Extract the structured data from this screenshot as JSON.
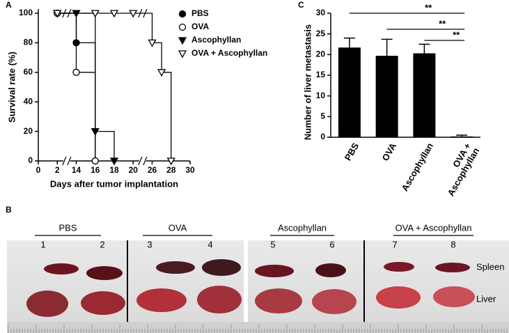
{
  "panel_labels": [
    "A",
    "B",
    "C"
  ],
  "chart_data": [
    {
      "type": "step",
      "xlabel": "Days after tumor implantation",
      "ylabel": "Survival rate (%)",
      "xlim": [
        0,
        30
      ],
      "xticks": [
        0,
        2,
        14,
        16,
        18,
        20,
        26,
        28,
        30
      ],
      "ylim": [
        0,
        100
      ],
      "yticks": [
        0,
        20,
        40,
        60,
        80,
        100
      ],
      "legend": "upper right",
      "series": [
        {
          "name": "PBS",
          "color": "#000000",
          "marker": "circle",
          "filled": true,
          "x": [
            2,
            14,
            16
          ],
          "values": [
            100,
            80,
            0
          ]
        },
        {
          "name": "OVA",
          "color": "#000000",
          "marker": "circle",
          "filled": false,
          "x": [
            2,
            14,
            16
          ],
          "values": [
            100,
            60,
            0
          ]
        },
        {
          "name": "Ascophyllan",
          "color": "#000000",
          "marker": "triangle-down",
          "filled": true,
          "x": [
            2,
            14,
            16,
            18
          ],
          "values": [
            100,
            100,
            20,
            0
          ]
        },
        {
          "name": "OVA + Ascophyllan",
          "color": "#000000",
          "marker": "triangle-down",
          "filled": false,
          "x": [
            2,
            16,
            18,
            20,
            26,
            27,
            28
          ],
          "values": [
            100,
            100,
            100,
            100,
            80,
            60,
            0
          ]
        }
      ]
    },
    {
      "type": "bar",
      "ylabel": "Number of liver metastasis",
      "categories": [
        "PBS",
        "OVA",
        "Ascophyllan",
        "OVA +\nAscophyllan"
      ],
      "values": [
        21.7,
        19.7,
        20.3,
        0.2
      ],
      "errors": [
        2.3,
        4.0,
        2.2,
        0.3
      ],
      "color": "#000000",
      "ylim": [
        0,
        30
      ],
      "yticks": [
        0,
        5,
        10,
        15,
        20,
        25,
        30
      ],
      "annotations": [
        "**",
        "**",
        "**"
      ]
    }
  ],
  "photo": {
    "groups": [
      {
        "label": "PBS",
        "samples": [
          1,
          2
        ]
      },
      {
        "label": "OVA",
        "samples": [
          3,
          4
        ]
      },
      {
        "label": "Ascophyllan",
        "samples": [
          5,
          6
        ]
      },
      {
        "label": "OVA + Ascophyllan",
        "samples": [
          7,
          8
        ]
      }
    ],
    "organs": [
      "Spleen",
      "Liver"
    ]
  }
}
